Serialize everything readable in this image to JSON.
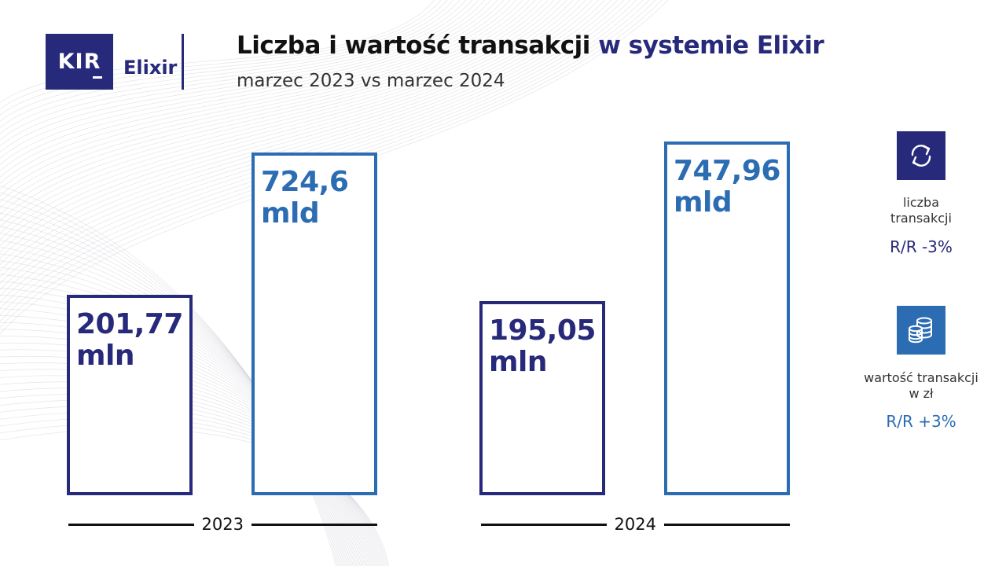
{
  "logo": {
    "mark": "KIR",
    "product": "Elixir"
  },
  "header": {
    "title_part1": "Liczba i wartość transakcji",
    "title_part2": "w systemie Elixir",
    "subtitle": "marzec 2023 vs marzec 2024"
  },
  "colors": {
    "navy": "#27297a",
    "blue": "#2b6cb2",
    "text": "#333333"
  },
  "chart_data": {
    "type": "bar",
    "title": "Liczba i wartość transakcji w systemie Elixir",
    "subtitle": "marzec 2023 vs marzec 2024",
    "categories": [
      "2023",
      "2024"
    ],
    "series": [
      {
        "name": "liczba transakcji",
        "unit": "mln",
        "values": [
          201.77,
          195.05
        ],
        "labels": [
          "201,77\nmln",
          "195,05\nmln"
        ],
        "color": "#27297a"
      },
      {
        "name": "wartość transakcji w zł",
        "unit": "mld",
        "values": [
          724.6,
          747.96
        ],
        "labels": [
          "724,6\nmld",
          "747,96\nmld"
        ],
        "color": "#2b6cb2"
      }
    ]
  },
  "legend": [
    {
      "icon": "arrows-exchange-icon",
      "label": "liczba\ntransakcji",
      "change": "R/R -3%",
      "color": "#27297a"
    },
    {
      "icon": "coins-stack-icon",
      "label": "wartość transakcji\nw zł",
      "change": "R/R +3%",
      "color": "#2b6cb2"
    }
  ]
}
